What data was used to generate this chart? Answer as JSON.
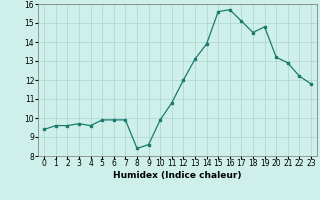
{
  "x": [
    0,
    1,
    2,
    3,
    4,
    5,
    6,
    7,
    8,
    9,
    10,
    11,
    12,
    13,
    14,
    15,
    16,
    17,
    18,
    19,
    20,
    21,
    22,
    23
  ],
  "y": [
    9.4,
    9.6,
    9.6,
    9.7,
    9.6,
    9.9,
    9.9,
    9.9,
    8.4,
    8.6,
    9.9,
    10.8,
    12.0,
    13.1,
    13.9,
    15.6,
    15.7,
    15.1,
    14.5,
    14.8,
    13.2,
    12.9,
    12.2,
    11.8
  ],
  "xlabel": "Humidex (Indice chaleur)",
  "xlim": [
    -0.5,
    23.5
  ],
  "ylim": [
    8,
    16
  ],
  "yticks": [
    8,
    9,
    10,
    11,
    12,
    13,
    14,
    15,
    16
  ],
  "xticks": [
    0,
    1,
    2,
    3,
    4,
    5,
    6,
    7,
    8,
    9,
    10,
    11,
    12,
    13,
    14,
    15,
    16,
    17,
    18,
    19,
    20,
    21,
    22,
    23
  ],
  "line_color": "#1a7a6e",
  "marker": "s",
  "marker_size": 2.0,
  "bg_color": "#cff0ea",
  "grid_color": "#b0d8d2",
  "label_fontsize": 6.5,
  "tick_fontsize": 5.5
}
